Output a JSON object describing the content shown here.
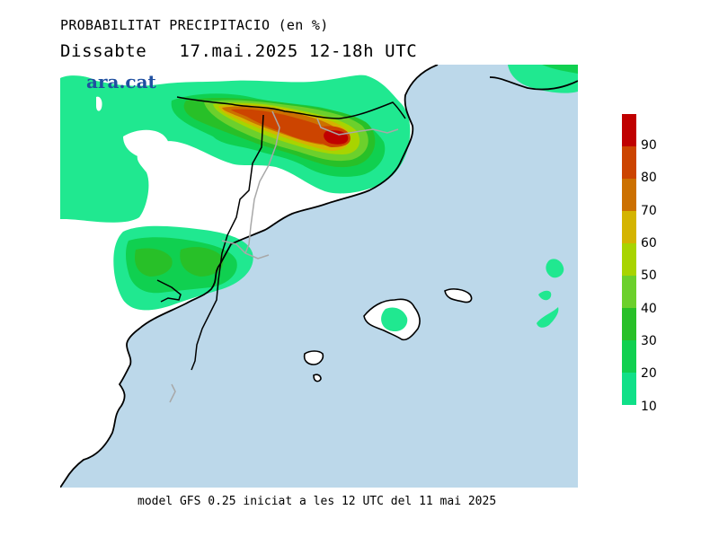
{
  "title": "PROBABILITAT PRECIPITACIO (en %)",
  "subtitle": "Dissabte   17.mai.2025 12-18h UTC",
  "logo": "ara.cat",
  "footer": "model GFS 0.25 iniciat a les 12 UTC del 11 mai 2025",
  "colors": {
    "sea": "#bcd8ea",
    "land": "#ffffff",
    "coast": "#000000",
    "border": "#b0b0b0"
  },
  "legend": {
    "labels": [
      "90",
      "80",
      "70",
      "60",
      "50",
      "40",
      "30",
      "20",
      "10"
    ],
    "colors": [
      "#c00000",
      "#cc4400",
      "#cc7000",
      "#d4b400",
      "#a8d400",
      "#6cd02c",
      "#28c028",
      "#10d050",
      "#10e088",
      "#20e890"
    ]
  }
}
